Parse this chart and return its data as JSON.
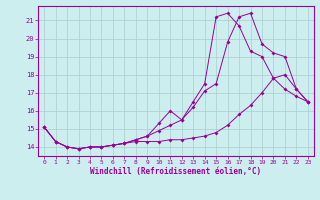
{
  "background_color": "#cceeee",
  "grid_color": "#aacccc",
  "line_color": "#990099",
  "marker_color": "#990099",
  "xlabel": "Windchill (Refroidissement éolien,°C)",
  "xlim": [
    -0.5,
    23.5
  ],
  "ylim": [
    13.5,
    21.8
  ],
  "yticks": [
    14,
    15,
    16,
    17,
    18,
    19,
    20,
    21
  ],
  "xticks": [
    0,
    1,
    2,
    3,
    4,
    5,
    6,
    7,
    8,
    9,
    10,
    11,
    12,
    13,
    14,
    15,
    16,
    17,
    18,
    19,
    20,
    21,
    22,
    23
  ],
  "series1_x": [
    0,
    1,
    2,
    3,
    4,
    5,
    6,
    7,
    8,
    9,
    10,
    11,
    12,
    13,
    14,
    15,
    16,
    17,
    18,
    19,
    20,
    21,
    22,
    23
  ],
  "series1_y": [
    15.1,
    14.3,
    14.0,
    13.9,
    14.0,
    14.0,
    14.1,
    14.2,
    14.3,
    14.3,
    14.3,
    14.4,
    14.4,
    14.5,
    14.6,
    14.8,
    15.2,
    15.8,
    16.3,
    17.0,
    17.8,
    18.0,
    17.2,
    16.5
  ],
  "series2_x": [
    0,
    1,
    2,
    3,
    4,
    5,
    6,
    7,
    8,
    9,
    10,
    11,
    12,
    13,
    14,
    15,
    16,
    17,
    18,
    19,
    20,
    21,
    22,
    23
  ],
  "series2_y": [
    15.1,
    14.3,
    14.0,
    13.9,
    14.0,
    14.0,
    14.1,
    14.2,
    14.4,
    14.6,
    15.3,
    16.0,
    15.5,
    16.2,
    17.1,
    17.5,
    19.8,
    21.2,
    21.4,
    19.7,
    19.2,
    19.0,
    17.2,
    16.5
  ],
  "series3_x": [
    0,
    1,
    2,
    3,
    4,
    5,
    6,
    7,
    8,
    9,
    10,
    11,
    12,
    13,
    14,
    15,
    16,
    17,
    18,
    19,
    20,
    21,
    22,
    23
  ],
  "series3_y": [
    15.1,
    14.3,
    14.0,
    13.9,
    14.0,
    14.0,
    14.1,
    14.2,
    14.4,
    14.6,
    14.9,
    15.2,
    15.5,
    16.5,
    17.5,
    21.2,
    21.4,
    20.7,
    19.3,
    19.0,
    17.8,
    17.2,
    16.8,
    16.5
  ]
}
